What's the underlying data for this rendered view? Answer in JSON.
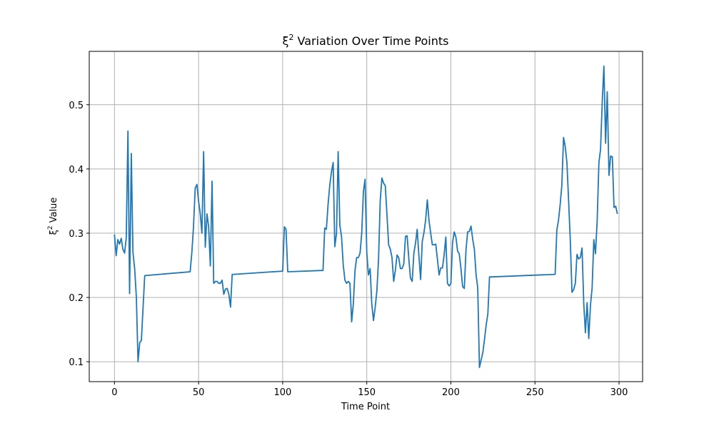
{
  "chart_data": {
    "type": "line",
    "title": "ξ² Variation Over Time Points",
    "title_main": "ξ",
    "title_sup": "2",
    "title_rest": " Variation Over Time Points",
    "xlabel": "Time Point",
    "ylabel_main": "ξ",
    "ylabel_sup": "2",
    "ylabel_rest": " Value",
    "xlim": [
      -15,
      314
    ],
    "ylim": [
      0.069,
      0.583
    ],
    "xticks": [
      0,
      50,
      100,
      150,
      200,
      250,
      300
    ],
    "xtick_labels": [
      "0",
      "50",
      "100",
      "150",
      "200",
      "250",
      "300"
    ],
    "yticks": [
      0.1,
      0.2,
      0.3,
      0.4,
      0.5
    ],
    "ytick_labels": [
      "0.1",
      "0.2",
      "0.3",
      "0.4",
      "0.5"
    ],
    "grid": true,
    "line_color": "#1f77b4",
    "series": [
      {
        "x": [
          0,
          1,
          2,
          3,
          4,
          5,
          6,
          7,
          8,
          9,
          10,
          11,
          12,
          13,
          14,
          15,
          16,
          17,
          18,
          45,
          46,
          47,
          48,
          49,
          50,
          51,
          52,
          53,
          54,
          55,
          56,
          57,
          58,
          59,
          60,
          61,
          62,
          63,
          64,
          65,
          66,
          67,
          68,
          69,
          70,
          71,
          100,
          101,
          102,
          103,
          123,
          124,
          125,
          126,
          127,
          128,
          129,
          130,
          131,
          132,
          133,
          134,
          135,
          136,
          137,
          138,
          139,
          140,
          141,
          142,
          143,
          144,
          145,
          146,
          147,
          148,
          149,
          150,
          151,
          152,
          153,
          154,
          155,
          156,
          157,
          158,
          159,
          160,
          161,
          162,
          163,
          164,
          165,
          166,
          167,
          168,
          169,
          170,
          171,
          172,
          173,
          174,
          175,
          176,
          177,
          178,
          179,
          180,
          181,
          182,
          183,
          184,
          185,
          186,
          187,
          188,
          189,
          190,
          191,
          192,
          193,
          194,
          195,
          196,
          197,
          198,
          199,
          200,
          201,
          202,
          203,
          204,
          205,
          206,
          207,
          208,
          209,
          210,
          211,
          212,
          213,
          214,
          215,
          216,
          217,
          218,
          219,
          220,
          221,
          222,
          223,
          224,
          262,
          263,
          264,
          265,
          266,
          267,
          268,
          269,
          270,
          271,
          272,
          273,
          274,
          275,
          276,
          277,
          278,
          279,
          280,
          281,
          282,
          283,
          284,
          285,
          286,
          287,
          288,
          289,
          290,
          291,
          292,
          293,
          294,
          295,
          296,
          297,
          298,
          299
        ],
        "values": [
          0.298,
          0.265,
          0.29,
          0.283,
          0.292,
          0.275,
          0.269,
          0.292,
          0.459,
          0.206,
          0.424,
          0.27,
          0.245,
          0.2,
          0.1,
          0.13,
          0.133,
          0.185,
          0.234,
          0.24,
          0.27,
          0.31,
          0.37,
          0.376,
          0.35,
          0.33,
          0.3,
          0.427,
          0.278,
          0.33,
          0.31,
          0.249,
          0.381,
          0.222,
          0.225,
          0.225,
          0.222,
          0.222,
          0.227,
          0.205,
          0.213,
          0.214,
          0.205,
          0.185,
          0.236,
          0.236,
          0.241,
          0.31,
          0.306,
          0.24,
          0.242,
          0.242,
          0.308,
          0.306,
          0.345,
          0.375,
          0.395,
          0.41,
          0.279,
          0.3,
          0.427,
          0.312,
          0.295,
          0.251,
          0.227,
          0.222,
          0.225,
          0.222,
          0.162,
          0.189,
          0.242,
          0.262,
          0.262,
          0.269,
          0.3,
          0.365,
          0.384,
          0.27,
          0.235,
          0.245,
          0.19,
          0.164,
          0.185,
          0.21,
          0.26,
          0.35,
          0.386,
          0.378,
          0.374,
          0.33,
          0.282,
          0.275,
          0.262,
          0.225,
          0.242,
          0.266,
          0.262,
          0.245,
          0.245,
          0.252,
          0.295,
          0.296,
          0.26,
          0.23,
          0.225,
          0.268,
          0.285,
          0.306,
          0.265,
          0.228,
          0.287,
          0.301,
          0.32,
          0.352,
          0.32,
          0.3,
          0.282,
          0.282,
          0.283,
          0.26,
          0.235,
          0.246,
          0.246,
          0.266,
          0.294,
          0.222,
          0.218,
          0.222,
          0.285,
          0.302,
          0.294,
          0.272,
          0.268,
          0.245,
          0.217,
          0.214,
          0.275,
          0.302,
          0.303,
          0.311,
          0.29,
          0.275,
          0.235,
          0.215,
          0.091,
          0.103,
          0.114,
          0.135,
          0.157,
          0.175,
          0.232,
          0.232,
          0.236,
          0.305,
          0.32,
          0.345,
          0.375,
          0.449,
          0.435,
          0.41,
          0.35,
          0.29,
          0.208,
          0.212,
          0.222,
          0.267,
          0.26,
          0.262,
          0.277,
          0.19,
          0.145,
          0.192,
          0.136,
          0.188,
          0.215,
          0.29,
          0.268,
          0.32,
          0.41,
          0.43,
          0.505,
          0.56,
          0.44,
          0.52,
          0.39,
          0.42,
          0.419,
          0.34,
          0.342,
          0.33
        ]
      }
    ]
  }
}
